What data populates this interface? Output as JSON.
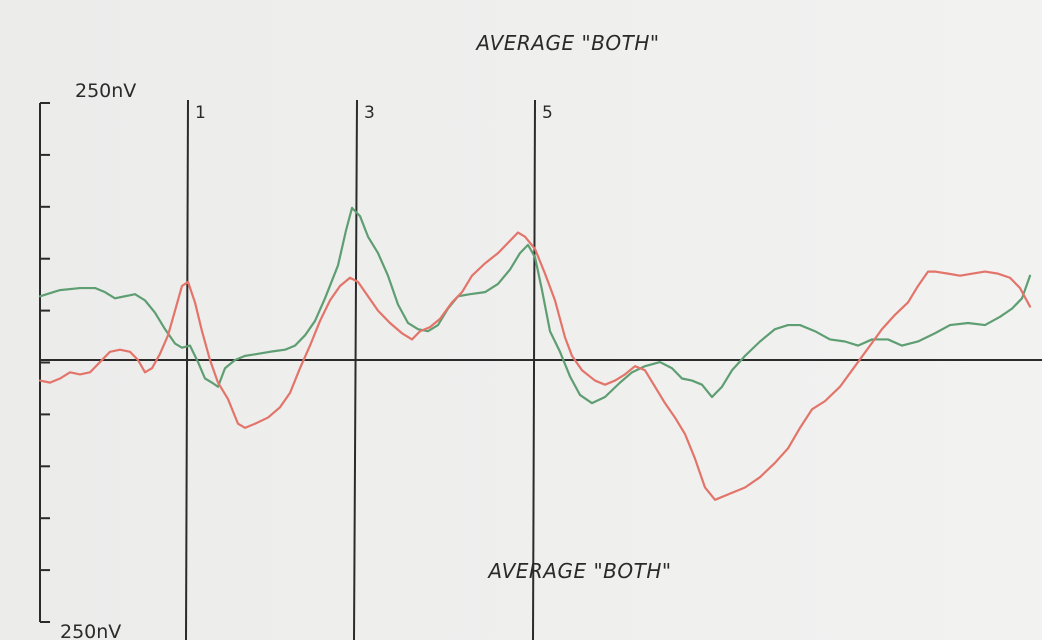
{
  "chart_data": {
    "type": "line",
    "title": "AVERAGE \"BOTH\"",
    "bottom_caption": "AVERAGE \"BOTH\"",
    "y_top_label": "250nV",
    "y_bottom_label": "250nV",
    "y_range_nV": [
      -250,
      250
    ],
    "grid": false,
    "peak_markers": [
      {
        "label": "1",
        "x": 180
      },
      {
        "label": "3",
        "x": 355
      },
      {
        "label": "5",
        "x": 535
      }
    ],
    "series": [
      {
        "color": "#5e9e72",
        "points": [
          [
            40,
            62
          ],
          [
            60,
            68
          ],
          [
            80,
            70
          ],
          [
            95,
            70
          ],
          [
            105,
            66
          ],
          [
            115,
            60
          ],
          [
            125,
            62
          ],
          [
            135,
            64
          ],
          [
            145,
            58
          ],
          [
            155,
            46
          ],
          [
            165,
            30
          ],
          [
            175,
            16
          ],
          [
            182,
            12
          ],
          [
            190,
            14
          ],
          [
            198,
            -2
          ],
          [
            205,
            -18
          ],
          [
            212,
            -22
          ],
          [
            218,
            -26
          ],
          [
            225,
            -8
          ],
          [
            235,
            0
          ],
          [
            245,
            4
          ],
          [
            258,
            6
          ],
          [
            270,
            8
          ],
          [
            285,
            10
          ],
          [
            295,
            14
          ],
          [
            305,
            24
          ],
          [
            315,
            38
          ],
          [
            325,
            60
          ],
          [
            338,
            92
          ],
          [
            346,
            126
          ],
          [
            352,
            148
          ],
          [
            360,
            140
          ],
          [
            368,
            120
          ],
          [
            378,
            104
          ],
          [
            388,
            82
          ],
          [
            398,
            54
          ],
          [
            408,
            36
          ],
          [
            418,
            30
          ],
          [
            428,
            28
          ],
          [
            438,
            34
          ],
          [
            448,
            50
          ],
          [
            458,
            62
          ],
          [
            470,
            64
          ],
          [
            485,
            66
          ],
          [
            498,
            74
          ],
          [
            510,
            88
          ],
          [
            520,
            104
          ],
          [
            528,
            112
          ],
          [
            535,
            100
          ],
          [
            542,
            68
          ],
          [
            550,
            28
          ],
          [
            560,
            8
          ],
          [
            570,
            -16
          ],
          [
            580,
            -34
          ],
          [
            592,
            -42
          ],
          [
            605,
            -36
          ],
          [
            620,
            -22
          ],
          [
            632,
            -12
          ],
          [
            645,
            -6
          ],
          [
            660,
            -2
          ],
          [
            672,
            -8
          ],
          [
            682,
            -18
          ],
          [
            692,
            -20
          ],
          [
            702,
            -24
          ],
          [
            712,
            -36
          ],
          [
            722,
            -26
          ],
          [
            732,
            -10
          ],
          [
            745,
            4
          ],
          [
            760,
            18
          ],
          [
            775,
            30
          ],
          [
            788,
            34
          ],
          [
            800,
            34
          ],
          [
            815,
            28
          ],
          [
            830,
            20
          ],
          [
            845,
            18
          ],
          [
            858,
            14
          ],
          [
            872,
            20
          ],
          [
            888,
            20
          ],
          [
            902,
            14
          ],
          [
            918,
            18
          ],
          [
            935,
            26
          ],
          [
            950,
            34
          ],
          [
            968,
            36
          ],
          [
            985,
            34
          ],
          [
            1000,
            42
          ],
          [
            1012,
            50
          ],
          [
            1022,
            60
          ],
          [
            1030,
            82
          ]
        ]
      },
      {
        "color": "#e3746a",
        "points": [
          [
            40,
            -20
          ],
          [
            50,
            -22
          ],
          [
            60,
            -18
          ],
          [
            70,
            -12
          ],
          [
            80,
            -14
          ],
          [
            90,
            -12
          ],
          [
            100,
            -2
          ],
          [
            110,
            8
          ],
          [
            120,
            10
          ],
          [
            130,
            8
          ],
          [
            138,
            0
          ],
          [
            145,
            -12
          ],
          [
            152,
            -8
          ],
          [
            160,
            6
          ],
          [
            168,
            24
          ],
          [
            175,
            48
          ],
          [
            182,
            72
          ],
          [
            188,
            76
          ],
          [
            195,
            56
          ],
          [
            202,
            28
          ],
          [
            210,
            0
          ],
          [
            218,
            -22
          ],
          [
            228,
            -38
          ],
          [
            238,
            -62
          ],
          [
            245,
            -66
          ],
          [
            255,
            -62
          ],
          [
            268,
            -56
          ],
          [
            280,
            -46
          ],
          [
            290,
            -32
          ],
          [
            300,
            -8
          ],
          [
            310,
            14
          ],
          [
            320,
            38
          ],
          [
            330,
            58
          ],
          [
            340,
            72
          ],
          [
            350,
            80
          ],
          [
            358,
            76
          ],
          [
            368,
            62
          ],
          [
            378,
            48
          ],
          [
            390,
            36
          ],
          [
            402,
            26
          ],
          [
            412,
            20
          ],
          [
            420,
            28
          ],
          [
            430,
            32
          ],
          [
            440,
            40
          ],
          [
            452,
            56
          ],
          [
            462,
            66
          ],
          [
            472,
            82
          ],
          [
            485,
            94
          ],
          [
            498,
            104
          ],
          [
            510,
            116
          ],
          [
            518,
            124
          ],
          [
            525,
            120
          ],
          [
            535,
            108
          ],
          [
            545,
            84
          ],
          [
            555,
            58
          ],
          [
            565,
            22
          ],
          [
            572,
            4
          ],
          [
            582,
            -10
          ],
          [
            595,
            -20
          ],
          [
            605,
            -24
          ],
          [
            615,
            -20
          ],
          [
            625,
            -14
          ],
          [
            635,
            -6
          ],
          [
            645,
            -10
          ],
          [
            655,
            -26
          ],
          [
            665,
            -42
          ],
          [
            675,
            -56
          ],
          [
            685,
            -72
          ],
          [
            695,
            -96
          ],
          [
            705,
            -124
          ],
          [
            715,
            -136
          ],
          [
            730,
            -130
          ],
          [
            745,
            -124
          ],
          [
            760,
            -114
          ],
          [
            775,
            -100
          ],
          [
            788,
            -86
          ],
          [
            800,
            -66
          ],
          [
            812,
            -48
          ],
          [
            825,
            -40
          ],
          [
            840,
            -26
          ],
          [
            855,
            -6
          ],
          [
            870,
            14
          ],
          [
            882,
            30
          ],
          [
            895,
            44
          ],
          [
            908,
            56
          ],
          [
            918,
            72
          ],
          [
            928,
            86
          ],
          [
            935,
            86
          ],
          [
            948,
            84
          ],
          [
            960,
            82
          ],
          [
            972,
            84
          ],
          [
            985,
            86
          ],
          [
            998,
            84
          ],
          [
            1010,
            80
          ],
          [
            1020,
            70
          ],
          [
            1030,
            52
          ]
        ]
      }
    ]
  }
}
